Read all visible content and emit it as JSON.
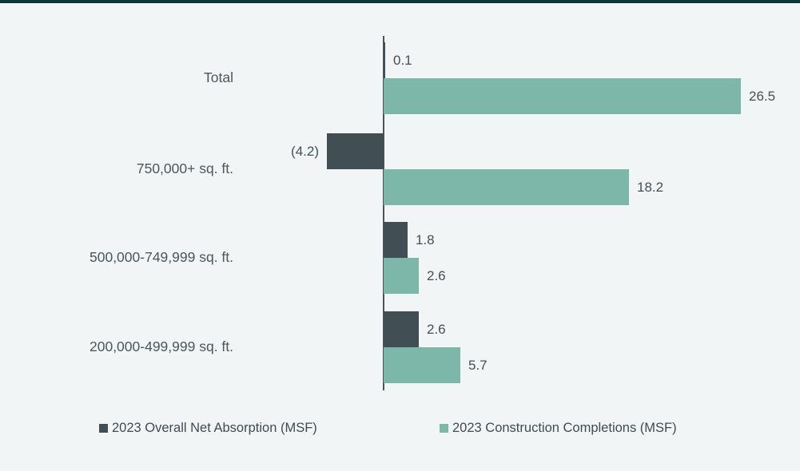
{
  "page": {
    "background_color": "#f1f5f5",
    "top_border_color": "#0d3837"
  },
  "chart_data": {
    "type": "bar",
    "orientation": "horizontal",
    "categories": [
      "Total",
      "750,000+ sq. ft.",
      "500,000-749,999 sq. ft.",
      "200,000-499,999 sq. ft."
    ],
    "series": [
      {
        "name": "2023 Overall Net Absorption (MSF)",
        "color": "#414e54",
        "values": [
          0.1,
          -4.2,
          1.8,
          2.6
        ],
        "value_labels": [
          "0.1",
          "(4.2)",
          "1.8",
          "2.6"
        ]
      },
      {
        "name": "2023 Construction Completions (MSF)",
        "color": "#7cb7a9",
        "values": [
          26.5,
          18.2,
          2.6,
          5.7
        ],
        "value_labels": [
          "26.5",
          "18.2",
          "2.6",
          "5.7"
        ]
      }
    ],
    "title": "",
    "xlabel": "",
    "ylabel": "",
    "grid": false,
    "legend_position": "bottom",
    "value_labels_shown": true,
    "negative_number_format": "parentheses",
    "axis_text_color": "#4a575b"
  }
}
